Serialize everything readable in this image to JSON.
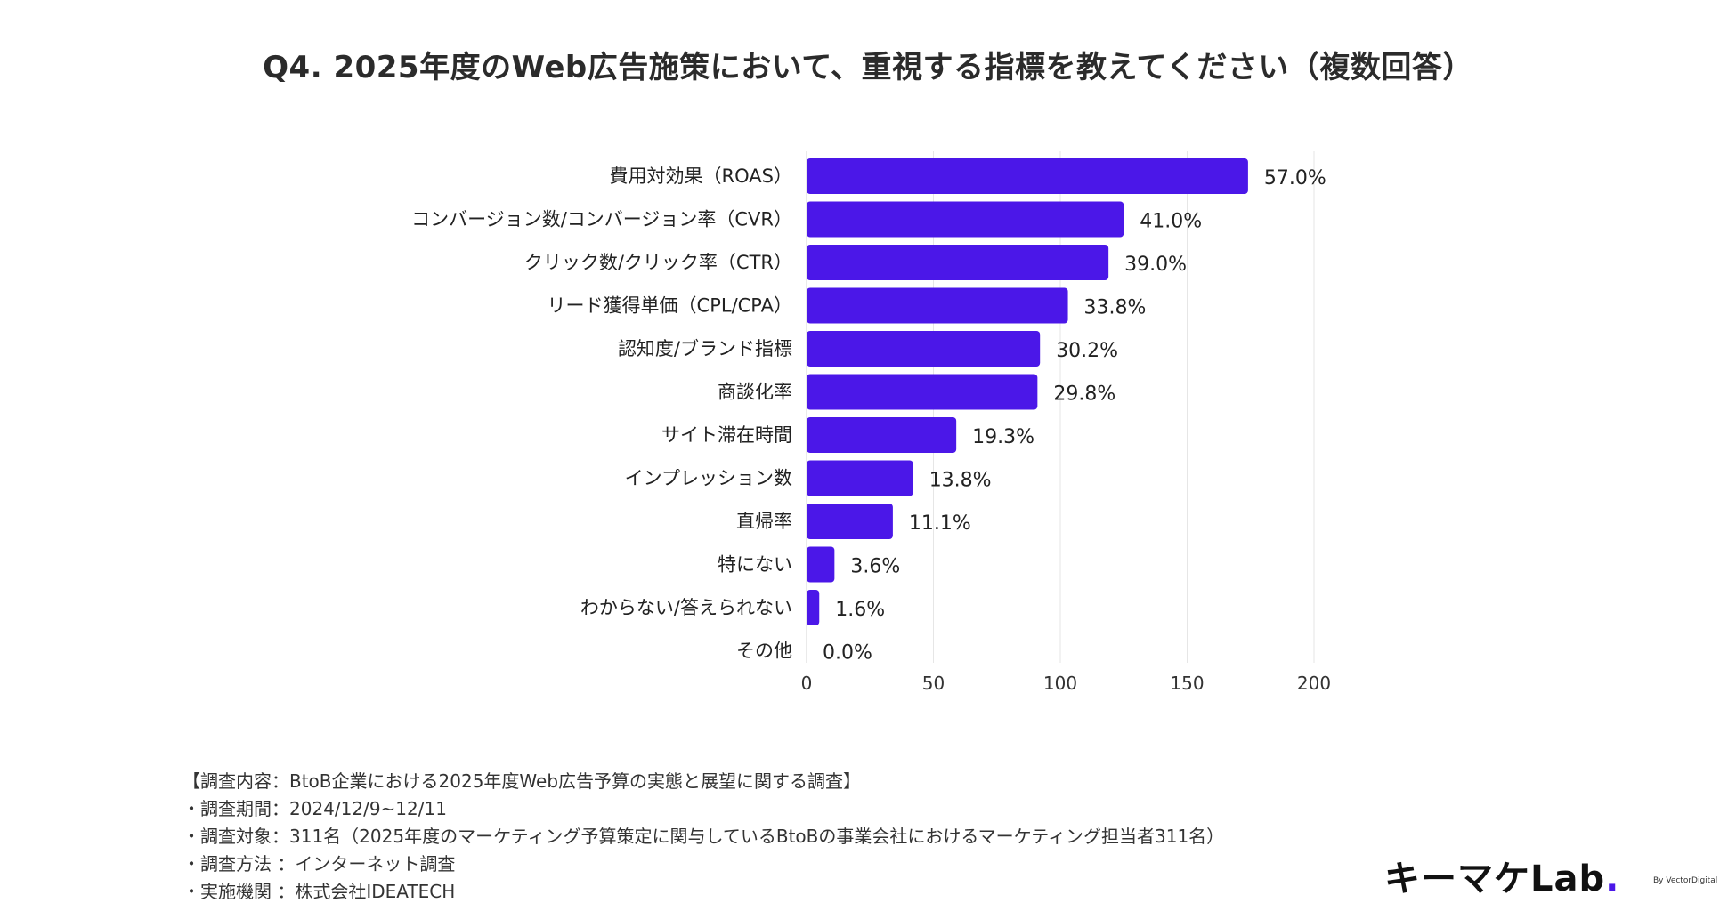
{
  "title": "Q4. 2025年度のWeb広告施策において、重視する指標を教えてください（複数回答）",
  "colors": {
    "bar": "#4b17e8",
    "grid": "#e6e6e6",
    "text": "#222222"
  },
  "chart_data": {
    "type": "bar",
    "orientation": "horizontal",
    "categories": [
      "費用対効果（ROAS）",
      "コンバージョン数/コンバージョン率（CVR）",
      "クリック数/クリック率（CTR）",
      "リード獲得単価（CPL/CPA）",
      "認知度/ブランド指標",
      "商談化率",
      "サイト滞在時間",
      "インプレッション数",
      "直帰率",
      "特にない",
      "わからない/答えられない",
      "その他"
    ],
    "values": [
      174,
      125,
      119,
      103,
      92,
      91,
      59,
      42,
      34,
      11,
      5,
      0
    ],
    "labels": [
      "57.0%",
      "41.0%",
      "39.0%",
      "33.8%",
      "30.2%",
      "29.8%",
      "19.3%",
      "13.8%",
      "11.1%",
      "3.6%",
      "1.6%",
      "0.0%"
    ],
    "xlim": [
      0,
      200
    ],
    "xticks": [
      "0",
      "50",
      "100",
      "150",
      "200"
    ],
    "grid": true
  },
  "notes": [
    "【調査内容：BtoB企業における2025年度Web広告予算の実態と展望に関する調査】",
    "・調査期間：2024/12/9~12/11",
    "・調査対象：311名（2025年度のマーケティング予算策定に関与しているBtoBの事業会社におけるマーケティング担当者311名）",
    "・調査方法 ：インターネット調査",
    "・実施機関 ：株式会社IDEATECH"
  ],
  "logo": {
    "main": "キーマケLab",
    "dot": ".",
    "by": "By VectorDigital"
  }
}
